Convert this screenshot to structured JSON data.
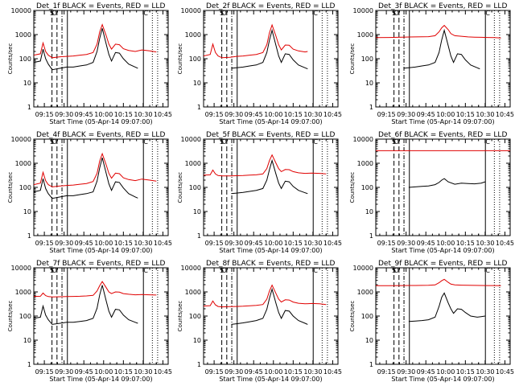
{
  "colors": {
    "events": "#000000",
    "lld": "#e00000",
    "axis": "#000000"
  },
  "common": {
    "title_suffix": "BLACK = Events, RED = LLD",
    "ylabel": "Counts/sec",
    "xlabel": "Start Time (05-Apr-14 09:07:00)",
    "x_ticks": [
      "09:15",
      "09:30",
      "09:45",
      "10:00",
      "10:15",
      "10:30",
      "10:45"
    ],
    "y_ticks": [
      "1",
      "10",
      "100",
      "1000",
      "10000"
    ],
    "markers": [
      "S",
      "O",
      "C"
    ]
  },
  "chart_data": [
    {
      "type": "line",
      "title": "Det_1f",
      "y_scale": "log",
      "ylim": [
        1,
        10000
      ],
      "x_unit": "minutes since 09:07",
      "xlim": [
        0,
        102
      ],
      "series": [
        {
          "name": "Events",
          "x": [
            0,
            5,
            7,
            9,
            11,
            14,
            20,
            25,
            30,
            35,
            40,
            45,
            48,
            50,
            52,
            55,
            57,
            59,
            62,
            65,
            68,
            72,
            77,
            79
          ],
          "y": [
            70,
            80,
            250,
            100,
            60,
            35,
            40,
            45,
            45,
            50,
            55,
            70,
            200,
            700,
            1800,
            400,
            150,
            80,
            180,
            170,
            100,
            60,
            45,
            40
          ]
        },
        {
          "name": "LLD",
          "x": [
            0,
            5,
            7,
            9,
            11,
            14,
            20,
            25,
            30,
            35,
            40,
            45,
            48,
            50,
            52,
            55,
            57,
            59,
            62,
            65,
            68,
            72,
            77,
            82,
            88,
            93
          ],
          "y": [
            140,
            160,
            450,
            200,
            140,
            110,
            120,
            125,
            130,
            140,
            150,
            180,
            400,
            1300,
            2600,
            900,
            400,
            250,
            400,
            380,
            260,
            220,
            200,
            230,
            210,
            190
          ]
        }
      ],
      "vlines_dashed": [
        13.8,
        17.6
      ],
      "vlines_dashdot": [
        21.4
      ],
      "vlines_solid": [
        25.5,
        83.2
      ],
      "vlines_dotted": [
        90,
        94
      ]
    },
    {
      "type": "line",
      "title": "Det_2f",
      "y_scale": "log",
      "ylim": [
        1,
        10000
      ],
      "x_unit": "minutes since 09:07",
      "xlim": [
        0,
        102
      ],
      "series": [
        {
          "name": "Events",
          "x": [
            21,
            25,
            30,
            35,
            40,
            45,
            48,
            50,
            52,
            55,
            57,
            59,
            62,
            65,
            68,
            72,
            77,
            79
          ],
          "y": [
            40,
            42,
            45,
            50,
            55,
            70,
            180,
            600,
            1500,
            350,
            130,
            70,
            160,
            150,
            90,
            55,
            42,
            38
          ]
        },
        {
          "name": "LLD",
          "x": [
            0,
            5,
            7,
            9,
            11,
            14,
            20,
            25,
            30,
            35,
            40,
            45,
            48,
            50,
            52,
            55,
            57,
            59,
            62,
            65,
            68,
            72,
            77,
            79
          ],
          "y": [
            130,
            150,
            400,
            180,
            130,
            110,
            115,
            125,
            130,
            140,
            150,
            180,
            380,
            1200,
            2500,
            850,
            380,
            230,
            370,
            360,
            250,
            210,
            190,
            200
          ]
        }
      ],
      "vlines_dashed": [
        13.8,
        17.6
      ],
      "vlines_dashdot": [
        21.4
      ],
      "vlines_solid": [
        25.5,
        83.2
      ],
      "vlines_dotted": [
        90,
        94
      ]
    },
    {
      "type": "line",
      "title": "Det_3f",
      "y_scale": "log",
      "ylim": [
        1,
        10000
      ],
      "x_unit": "minutes since 09:07",
      "xlim": [
        0,
        102
      ],
      "series": [
        {
          "name": "Events",
          "x": [
            21,
            25,
            30,
            35,
            40,
            45,
            48,
            50,
            52,
            55,
            57,
            59,
            62,
            65,
            68,
            72,
            77,
            79
          ],
          "y": [
            40,
            42,
            45,
            50,
            55,
            70,
            180,
            600,
            1500,
            350,
            130,
            70,
            160,
            150,
            90,
            55,
            42,
            38
          ]
        },
        {
          "name": "LLD",
          "x": [
            0,
            10,
            20,
            30,
            40,
            45,
            48,
            50,
            52,
            55,
            57,
            60,
            65,
            70,
            75,
            80,
            85,
            90,
            95
          ],
          "y": [
            750,
            760,
            780,
            800,
            820,
            900,
            1300,
            1900,
            2400,
            1600,
            1100,
            900,
            850,
            800,
            780,
            770,
            760,
            750,
            720
          ]
        }
      ],
      "vlines_dashed": [
        13.8,
        17.6
      ],
      "vlines_dashdot": [
        21.4
      ],
      "vlines_solid": [
        25.5,
        83.2
      ],
      "vlines_dotted": [
        90,
        94
      ]
    },
    {
      "type": "line",
      "title": "Det_4f",
      "y_scale": "log",
      "ylim": [
        1,
        10000
      ],
      "x_unit": "minutes since 09:07",
      "xlim": [
        0,
        102
      ],
      "series": [
        {
          "name": "Events",
          "x": [
            0,
            5,
            7,
            9,
            11,
            14,
            20,
            25,
            30,
            35,
            40,
            45,
            48,
            50,
            52,
            55,
            57,
            59,
            62,
            65,
            68,
            72,
            77,
            79
          ],
          "y": [
            65,
            75,
            230,
            90,
            55,
            35,
            40,
            45,
            45,
            50,
            55,
            65,
            180,
            650,
            1700,
            380,
            140,
            75,
            170,
            160,
            95,
            55,
            40,
            36
          ]
        },
        {
          "name": "LLD",
          "x": [
            0,
            5,
            7,
            9,
            11,
            14,
            20,
            25,
            30,
            35,
            40,
            45,
            48,
            50,
            52,
            55,
            57,
            59,
            62,
            65,
            68,
            72,
            77,
            82,
            88,
            93
          ],
          "y": [
            130,
            150,
            420,
            190,
            130,
            105,
            115,
            120,
            125,
            135,
            145,
            175,
            380,
            1250,
            2500,
            850,
            380,
            240,
            390,
            370,
            250,
            210,
            190,
            220,
            200,
            180
          ]
        }
      ],
      "vlines_dashed": [
        13.8,
        17.6
      ],
      "vlines_dashdot": [
        21.4
      ],
      "vlines_solid": [
        25.5,
        83.2
      ],
      "vlines_dotted": [
        90,
        94
      ]
    },
    {
      "type": "line",
      "title": "Det_5f",
      "y_scale": "log",
      "ylim": [
        1,
        10000
      ],
      "x_unit": "minutes since 09:07",
      "xlim": [
        0,
        102
      ],
      "series": [
        {
          "name": "Events",
          "x": [
            21,
            25,
            30,
            35,
            40,
            45,
            48,
            50,
            52,
            55,
            57,
            59,
            62,
            65,
            68,
            72,
            77,
            79
          ],
          "y": [
            55,
            58,
            62,
            68,
            75,
            90,
            200,
            550,
            1300,
            350,
            150,
            90,
            180,
            170,
            110,
            75,
            60,
            55
          ]
        },
        {
          "name": "LLD",
          "x": [
            0,
            5,
            7,
            9,
            11,
            14,
            20,
            25,
            30,
            35,
            40,
            45,
            48,
            50,
            52,
            55,
            57,
            59,
            62,
            65,
            68,
            72,
            77,
            82,
            88,
            93
          ],
          "y": [
            320,
            330,
            520,
            360,
            310,
            300,
            300,
            305,
            310,
            320,
            330,
            360,
            600,
            1300,
            2200,
            1000,
            600,
            450,
            550,
            540,
            450,
            400,
            380,
            390,
            380,
            360
          ]
        }
      ],
      "vlines_dashed": [
        13.8,
        17.6
      ],
      "vlines_dashdot": [
        21.4
      ],
      "vlines_solid": [
        25.5,
        83.2
      ],
      "vlines_dotted": [
        90,
        94
      ]
    },
    {
      "type": "line",
      "title": "Det_6f",
      "y_scale": "log",
      "ylim": [
        1,
        10000
      ],
      "x_unit": "minutes since 09:07",
      "xlim": [
        0,
        102
      ],
      "series": [
        {
          "name": "Events",
          "x": [
            25,
            30,
            35,
            40,
            45,
            48,
            50,
            52,
            55,
            60,
            65,
            70,
            75,
            80,
            83
          ],
          "y": [
            100,
            105,
            110,
            115,
            130,
            160,
            200,
            230,
            170,
            135,
            150,
            145,
            140,
            150,
            170
          ]
        },
        {
          "name": "LLD",
          "x": [
            0,
            20,
            40,
            60,
            80,
            102
          ],
          "y": [
            3300,
            3300,
            3300,
            3300,
            3300,
            3300
          ]
        }
      ],
      "vlines_dashed": [
        13.8,
        17.6
      ],
      "vlines_dashdot": [
        21.4
      ],
      "vlines_solid": [
        25.5,
        83.2
      ],
      "vlines_dotted": [
        90,
        94
      ]
    },
    {
      "type": "line",
      "title": "Det_7f",
      "y_scale": "log",
      "ylim": [
        1,
        10000
      ],
      "x_unit": "minutes since 09:07",
      "xlim": [
        0,
        102
      ],
      "series": [
        {
          "name": "Events",
          "x": [
            0,
            5,
            7,
            9,
            11,
            14,
            20,
            25,
            30,
            35,
            40,
            45,
            48,
            50,
            52,
            55,
            57,
            59,
            62,
            65,
            68,
            72,
            77,
            79
          ],
          "y": [
            80,
            90,
            260,
            110,
            70,
            45,
            50,
            55,
            55,
            60,
            65,
            80,
            210,
            750,
            1900,
            420,
            160,
            90,
            190,
            180,
            110,
            70,
            55,
            50
          ]
        },
        {
          "name": "LLD",
          "x": [
            0,
            5,
            7,
            9,
            11,
            14,
            20,
            25,
            30,
            35,
            40,
            45,
            48,
            50,
            52,
            55,
            57,
            59,
            62,
            65,
            68,
            72,
            77,
            82,
            88,
            93
          ],
          "y": [
            650,
            660,
            900,
            700,
            640,
            620,
            630,
            640,
            650,
            660,
            680,
            720,
            1100,
            1800,
            2700,
            1500,
            1000,
            850,
            1000,
            980,
            850,
            800,
            760,
            780,
            760,
            740
          ]
        }
      ],
      "vlines_dashed": [
        13.8,
        17.6
      ],
      "vlines_dashdot": [
        21.4
      ],
      "vlines_solid": [
        25.5,
        83.2
      ],
      "vlines_dotted": [
        90,
        94
      ]
    },
    {
      "type": "line",
      "title": "Det_8f",
      "y_scale": "log",
      "ylim": [
        1,
        10000
      ],
      "x_unit": "minutes since 09:07",
      "xlim": [
        0,
        102
      ],
      "series": [
        {
          "name": "Events",
          "x": [
            21,
            25,
            30,
            35,
            40,
            45,
            48,
            50,
            52,
            55,
            57,
            59,
            62,
            65,
            68,
            72,
            77,
            79
          ],
          "y": [
            45,
            48,
            52,
            58,
            65,
            80,
            190,
            550,
            1300,
            330,
            140,
            80,
            170,
            160,
            100,
            65,
            50,
            45
          ]
        },
        {
          "name": "LLD",
          "x": [
            0,
            5,
            7,
            9,
            11,
            14,
            20,
            25,
            30,
            35,
            40,
            45,
            48,
            50,
            52,
            55,
            57,
            59,
            62,
            65,
            68,
            72,
            77,
            82,
            88,
            93
          ],
          "y": [
            260,
            270,
            420,
            290,
            250,
            240,
            245,
            250,
            255,
            265,
            275,
            300,
            500,
            1100,
            1900,
            850,
            500,
            380,
            470,
            460,
            380,
            340,
            320,
            330,
            320,
            300
          ]
        }
      ],
      "vlines_dashed": [
        13.8,
        17.6
      ],
      "vlines_dashdot": [
        21.4
      ],
      "vlines_solid": [
        25.5,
        83.2
      ],
      "vlines_dotted": [
        90,
        94
      ]
    },
    {
      "type": "line",
      "title": "Det_9f",
      "y_scale": "log",
      "ylim": [
        1,
        10000
      ],
      "x_unit": "minutes since 09:07",
      "xlim": [
        0,
        102
      ],
      "series": [
        {
          "name": "Events",
          "x": [
            25,
            30,
            35,
            40,
            45,
            48,
            50,
            52,
            55,
            57,
            59,
            62,
            65,
            68,
            72,
            77,
            80,
            83
          ],
          "y": [
            60,
            62,
            65,
            70,
            90,
            250,
            600,
            900,
            350,
            200,
            130,
            200,
            190,
            140,
            100,
            90,
            95,
            100
          ]
        },
        {
          "name": "LLD",
          "x": [
            0,
            10,
            20,
            30,
            40,
            45,
            48,
            50,
            52,
            55,
            57,
            60,
            65,
            70,
            75,
            80,
            85,
            90,
            95
          ],
          "y": [
            1800,
            1820,
            1840,
            1850,
            1870,
            1950,
            2400,
            2900,
            3300,
            2500,
            2100,
            1950,
            1900,
            1880,
            1860,
            1850,
            1840,
            1830,
            1820
          ]
        }
      ],
      "vlines_dashed": [
        13.8,
        17.6
      ],
      "vlines_dashdot": [
        21.4
      ],
      "vlines_solid": [
        25.5,
        83.2
      ],
      "vlines_dotted": [
        90,
        94
      ]
    }
  ]
}
